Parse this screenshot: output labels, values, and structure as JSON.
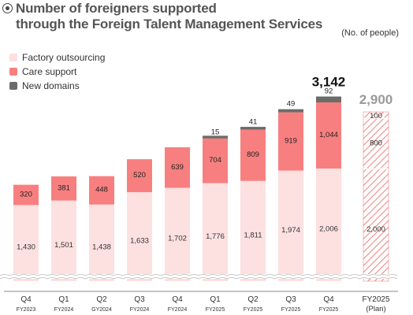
{
  "header": {
    "title_line1": "Number of foreigners supported",
    "title_line2": "through the Foreign Talent Management Services",
    "unit": "(No. of people)"
  },
  "legend": [
    {
      "label": "Factory outsourcing",
      "color": "#fde0e0"
    },
    {
      "label": "Care support",
      "color": "#f87f7f"
    },
    {
      "label": "New domains",
      "color": "#6b6b6b"
    }
  ],
  "chart_data": {
    "type": "bar",
    "stacked": true,
    "categories": [
      {
        "quarter": "Q4",
        "year": "FY2023"
      },
      {
        "quarter": "Q1",
        "year": "FY2024"
      },
      {
        "quarter": "Q2",
        "year": "GY2024"
      },
      {
        "quarter": "Q3",
        "year": "FY2024"
      },
      {
        "quarter": "Q4",
        "year": "FY2024"
      },
      {
        "quarter": "Q1",
        "year": "FY2025"
      },
      {
        "quarter": "Q2",
        "year": "FY2025"
      },
      {
        "quarter": "Q3",
        "year": "FY2025"
      },
      {
        "quarter": "Q4",
        "year": "FY2025"
      },
      {
        "quarter": "FY2025",
        "year": "(Plan)"
      }
    ],
    "series": [
      {
        "name": "Factory outsourcing",
        "values": [
          1430,
          1501,
          1438,
          1633,
          1702,
          1776,
          1811,
          1974,
          2006,
          2000
        ]
      },
      {
        "name": "Care support",
        "values": [
          320,
          381,
          448,
          520,
          639,
          704,
          809,
          919,
          1044,
          800
        ]
      },
      {
        "name": "New domains",
        "values": [
          null,
          null,
          null,
          null,
          null,
          15,
          41,
          49,
          92,
          100
        ]
      }
    ],
    "value_labels": [
      [
        "1,430",
        "1,501",
        "1,438",
        "1,633",
        "1,702",
        "1,776",
        "1,811",
        "1,974",
        "2,006",
        "2,000"
      ],
      [
        "320",
        "381",
        "448",
        "520",
        "639",
        "704",
        "809",
        "919",
        "1,044",
        "800"
      ],
      [
        "",
        "",
        "",
        "",
        "",
        "15",
        "41",
        "49",
        "92",
        "100"
      ]
    ],
    "totals": [
      {
        "index": 8,
        "label": "3,142"
      },
      {
        "index": 9,
        "label": "2,900"
      }
    ],
    "plan_index": 9,
    "axis_break": true,
    "colors": {
      "factory": "#fde0e0",
      "care": "#f87f7f",
      "new": "#6b6b6b",
      "plan_hatch": "#f08a8a",
      "plan_total": "#999999",
      "total": "#111111"
    }
  }
}
